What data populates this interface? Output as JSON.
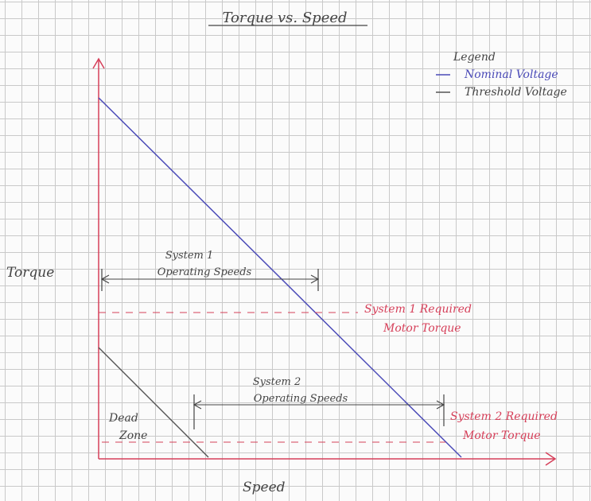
{
  "title": "Torque vs. Speed",
  "legend": {
    "heading": "Legend",
    "items": [
      {
        "symbol": "—",
        "label": "Nominal Voltage",
        "color": "#4b4bb8"
      },
      {
        "symbol": "—",
        "label": "Threshold Voltage",
        "color": "#555555"
      }
    ]
  },
  "axes": {
    "y_label": "Torque",
    "x_label": "Speed",
    "color": "#d6405a"
  },
  "annotations": {
    "system1_speeds": [
      "System 1",
      "Operating Speeds"
    ],
    "system2_speeds": [
      "System 2",
      "Operating Speeds"
    ],
    "system1_torque": [
      "System 1 Required",
      "Motor Torque"
    ],
    "system2_torque": [
      "System 2 Required",
      "Motor Torque"
    ],
    "dead_zone": [
      "Dead",
      "Zone"
    ]
  },
  "colors": {
    "nominal": "#4b4bb8",
    "threshold": "#555555",
    "required_torque": "#d6405a",
    "ink": "#444444"
  }
}
